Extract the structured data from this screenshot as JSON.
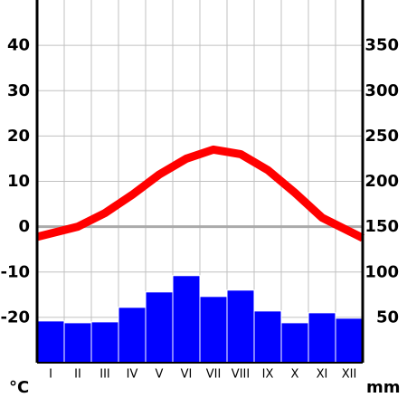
{
  "chart_data": {
    "type": "bar",
    "categories": [
      "I",
      "II",
      "III",
      "IV",
      "V",
      "VI",
      "VII",
      "VIII",
      "IX",
      "X",
      "XI",
      "XII"
    ],
    "series": [
      {
        "type": "line",
        "axis": "left",
        "values": [
          -1.5,
          0,
          3,
          7,
          11.5,
          15,
          17,
          16,
          12.5,
          7.5,
          2,
          -1
        ],
        "color": "#ff0000"
      },
      {
        "type": "bar",
        "axis": "right",
        "values": [
          46,
          44,
          45,
          61,
          78,
          96,
          73,
          80,
          57,
          44,
          55,
          49
        ],
        "color": "#0000ff"
      }
    ],
    "left_axis": {
      "unit": "°C",
      "ylim": [
        -30,
        50
      ],
      "ticks": [
        "40",
        "30",
        "20",
        "10",
        "0",
        "-10",
        "-20"
      ],
      "tick_values": [
        40,
        30,
        20,
        10,
        0,
        -10,
        -20
      ]
    },
    "right_axis": {
      "unit": "mm",
      "ylim": [
        0,
        400
      ],
      "ticks": [
        "350",
        "300",
        "250",
        "200",
        "150",
        "100",
        "50"
      ],
      "tick_values": [
        350,
        300,
        250,
        200,
        150,
        100,
        50
      ]
    },
    "grid": true,
    "zero_line_color": "#aaaaaa"
  }
}
